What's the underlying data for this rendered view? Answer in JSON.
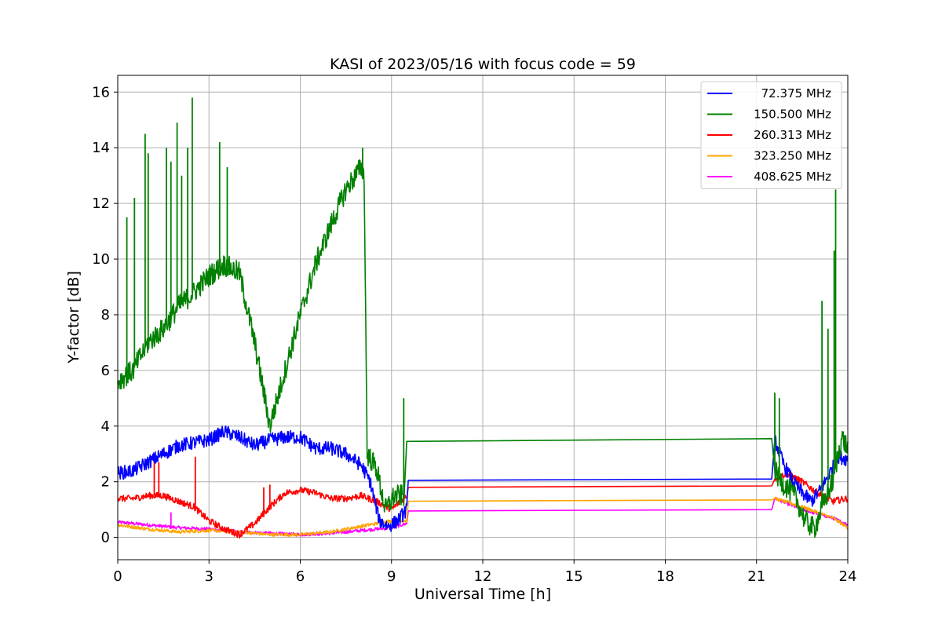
{
  "chart_data": {
    "type": "line",
    "title": "KASI of 2023/05/16 with focus code = 59",
    "xlabel": "Universal Time [h]",
    "ylabel": "Y-factor [dB]",
    "xlim": [
      0,
      24
    ],
    "ylim": [
      -0.8,
      16.6
    ],
    "xticks": [
      0,
      3,
      6,
      9,
      12,
      15,
      18,
      21,
      24
    ],
    "yticks": [
      0,
      2,
      4,
      6,
      8,
      10,
      12,
      14,
      16
    ],
    "grid": true,
    "legend_position": "top-right",
    "series": [
      {
        "name": "72.375 MHz",
        "color": "#0000ff",
        "x": [
          0,
          0.5,
          1,
          1.5,
          2,
          2.5,
          3,
          3.5,
          4,
          4.5,
          5,
          5.5,
          6,
          6.5,
          7,
          7.5,
          8,
          8.3,
          8.6,
          8.9,
          9.2,
          9.5,
          9.55,
          21.5,
          21.6,
          21.9,
          22.2,
          22.5,
          22.8,
          23.1,
          23.4,
          23.7,
          24
        ],
        "y": [
          2.3,
          2.4,
          2.7,
          3.0,
          3.3,
          3.4,
          3.5,
          3.8,
          3.6,
          3.3,
          3.5,
          3.6,
          3.6,
          3.2,
          3.2,
          3.0,
          2.6,
          2.0,
          0.6,
          0.4,
          0.6,
          1.0,
          2.05,
          2.1,
          3.5,
          2.6,
          2.0,
          1.6,
          1.3,
          1.7,
          2.3,
          2.9,
          2.8
        ],
        "noise": 0.25
      },
      {
        "name": "150.500 MHz",
        "color": "#008000",
        "x": [
          0,
          0.5,
          1,
          1.5,
          2,
          2.5,
          3,
          3.5,
          4,
          4.5,
          5,
          5.5,
          6,
          6.5,
          7,
          7.5,
          8,
          8.1,
          8.2,
          8.5,
          8.8,
          9.1,
          9.4,
          9.5,
          21.5,
          21.6,
          21.8,
          22.0,
          22.3,
          22.6,
          22.9,
          23.2,
          23.5,
          23.8,
          24
        ],
        "y": [
          5.6,
          6.0,
          7.0,
          7.5,
          8.3,
          8.8,
          9.4,
          9.8,
          9.5,
          7.0,
          4.0,
          6.0,
          8.0,
          9.8,
          11.2,
          12.5,
          13.3,
          13.0,
          3.0,
          2.5,
          1.0,
          1.5,
          1.5,
          3.45,
          3.55,
          2.4,
          2.0,
          1.8,
          1.4,
          0.6,
          0.3,
          1.2,
          2.0,
          3.6,
          3.2
        ],
        "noise": 0.4
      },
      {
        "name": "260.313 MHz",
        "color": "#ff0000",
        "x": [
          0,
          0.5,
          1,
          1.5,
          2,
          2.5,
          3,
          3.5,
          4,
          4.5,
          5,
          5.5,
          6,
          6.5,
          7,
          7.5,
          8,
          8.5,
          9,
          9.5,
          9.55,
          21.5,
          21.6,
          22,
          22.5,
          23,
          23.5,
          24
        ],
        "y": [
          1.4,
          1.4,
          1.5,
          1.5,
          1.3,
          1.1,
          0.6,
          0.3,
          0.1,
          0.5,
          1.1,
          1.6,
          1.7,
          1.6,
          1.4,
          1.4,
          1.5,
          1.3,
          1.0,
          1.5,
          1.8,
          1.85,
          2.1,
          2.3,
          2.0,
          1.6,
          1.3,
          1.4
        ],
        "noise": 0.12
      },
      {
        "name": "323.250 MHz",
        "color": "#ffa500",
        "x": [
          0,
          1,
          2,
          3,
          4,
          5,
          6,
          7,
          8,
          9,
          9.5,
          9.55,
          21.5,
          21.6,
          22.5,
          23.5,
          24
        ],
        "y": [
          0.45,
          0.3,
          0.2,
          0.25,
          0.2,
          0.1,
          0.1,
          0.2,
          0.4,
          0.6,
          0.6,
          1.3,
          1.35,
          1.4,
          1.1,
          0.7,
          0.35
        ],
        "noise": 0.06
      },
      {
        "name": "408.625 MHz",
        "color": "#ff00ff",
        "x": [
          0,
          1,
          2,
          3,
          4,
          5,
          6,
          7,
          8,
          9,
          9.5,
          9.55,
          21.5,
          21.6,
          22.5,
          23.5,
          24
        ],
        "y": [
          0.55,
          0.45,
          0.35,
          0.3,
          0.2,
          0.15,
          0.1,
          0.15,
          0.25,
          0.35,
          0.5,
          0.95,
          1.0,
          1.4,
          1.0,
          0.7,
          0.45
        ],
        "noise": 0.06
      }
    ],
    "spikes": [
      {
        "series": 1,
        "x": [
          0.3,
          0.55,
          0.9,
          1.0,
          1.6,
          1.75,
          1.95,
          2.1,
          2.3,
          2.45,
          3.35,
          3.6,
          8.05,
          9.4,
          21.6,
          21.75,
          23.15,
          23.35,
          23.55,
          23.6
        ],
        "y": [
          11.5,
          12.2,
          14.5,
          13.8,
          14.0,
          13.5,
          14.9,
          13.0,
          14.0,
          15.8,
          14.2,
          13.3,
          14.0,
          5.0,
          5.2,
          5.0,
          8.5,
          7.5,
          10.3,
          12.5
        ]
      },
      {
        "series": 2,
        "x": [
          1.2,
          1.35,
          2.55,
          4.8,
          5.0
        ],
        "y": [
          2.8,
          2.7,
          2.9,
          1.8,
          1.9
        ]
      },
      {
        "series": 4,
        "x": [
          1.75
        ],
        "y": [
          0.9
        ]
      }
    ]
  }
}
